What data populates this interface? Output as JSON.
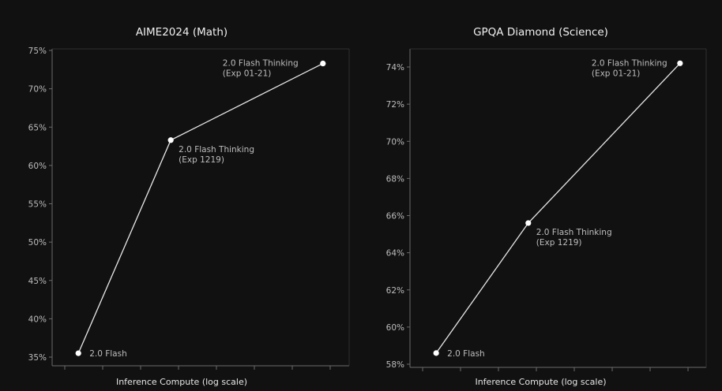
{
  "chart_data": [
    {
      "type": "line",
      "title": "AIME2024 (Math)",
      "xlabel": "Inference Compute (log scale)",
      "ylabel": "",
      "ylim": [
        35,
        75
      ],
      "yticks": [
        "35%",
        "40%",
        "45%",
        "50%",
        "55%",
        "60%",
        "65%",
        "70%",
        "75%"
      ],
      "xlim": [
        0,
        10
      ],
      "grid": false,
      "line_color": "#e8e8e8",
      "points": [
        {
          "x": 0.5,
          "y": 35.5,
          "label_lines": [
            "2.0 Flash"
          ]
        },
        {
          "x": 3.9,
          "y": 63.3,
          "label_lines": [
            "2.0 Flash Thinking",
            "(Exp 1219)"
          ]
        },
        {
          "x": 9.5,
          "y": 73.3,
          "label_lines": [
            "2.0 Flash Thinking",
            "(Exp 01-21)"
          ]
        }
      ]
    },
    {
      "type": "line",
      "title": "GPQA Diamond (Science)",
      "xlabel": "Inference Compute (log scale)",
      "ylabel": "",
      "ylim": [
        58,
        75
      ],
      "yticks": [
        "58%",
        "60%",
        "62%",
        "64%",
        "66%",
        "68%",
        "70%",
        "72%",
        "74%"
      ],
      "xlim": [
        0,
        10
      ],
      "grid": false,
      "line_color": "#e8e8e8",
      "points": [
        {
          "x": 0.5,
          "y": 58.6,
          "label_lines": [
            "2.0 Flash"
          ]
        },
        {
          "x": 3.9,
          "y": 65.6,
          "label_lines": [
            "2.0 Flash Thinking",
            "(Exp 1219)"
          ]
        },
        {
          "x": 9.5,
          "y": 74.2,
          "label_lines": [
            "2.0 Flash Thinking",
            "(Exp 01-21)"
          ]
        }
      ]
    }
  ]
}
